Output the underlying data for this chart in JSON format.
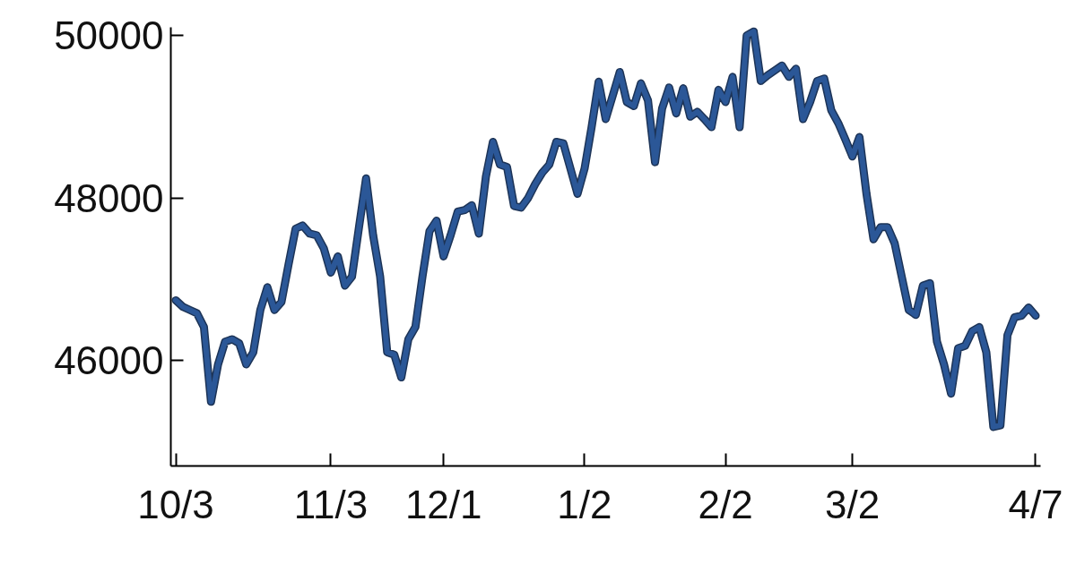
{
  "chart_data": {
    "type": "line",
    "categories": [
      "10/3",
      null,
      null,
      null,
      null,
      null,
      null,
      null,
      null,
      null,
      null,
      null,
      null,
      null,
      null,
      null,
      null,
      null,
      null,
      null,
      null,
      null,
      "11/3",
      null,
      null,
      null,
      null,
      null,
      null,
      null,
      null,
      null,
      null,
      null,
      null,
      null,
      null,
      null,
      "12/1",
      null,
      null,
      null,
      null,
      null,
      null,
      null,
      null,
      null,
      null,
      null,
      null,
      null,
      null,
      null,
      null,
      null,
      null,
      null,
      "1/2",
      null,
      null,
      null,
      null,
      null,
      null,
      null,
      null,
      null,
      null,
      null,
      null,
      null,
      null,
      null,
      null,
      null,
      null,
      null,
      "2/2",
      null,
      null,
      null,
      null,
      null,
      null,
      null,
      null,
      null,
      null,
      null,
      null,
      null,
      null,
      null,
      null,
      null,
      "3/2",
      null,
      null,
      null,
      null,
      null,
      null,
      null,
      null,
      null,
      null,
      null,
      null,
      null,
      null,
      null,
      null,
      null,
      null,
      null,
      null,
      null,
      null,
      null,
      null,
      null,
      "4/7"
    ],
    "values": [
      46740,
      46660,
      46620,
      46580,
      46410,
      45490,
      45950,
      46230,
      46260,
      46210,
      45950,
      46100,
      46620,
      46900,
      46620,
      46720,
      47180,
      47620,
      47660,
      47560,
      47540,
      47380,
      47080,
      47280,
      46920,
      47030,
      47640,
      48240,
      47540,
      47030,
      46100,
      46070,
      45790,
      46260,
      46410,
      47030,
      47590,
      47720,
      47280,
      47540,
      47830,
      47850,
      47910,
      47560,
      48260,
      48690,
      48410,
      48380,
      47900,
      47880,
      48000,
      48170,
      48310,
      48410,
      48690,
      48670,
      48360,
      48050,
      48360,
      48870,
      49430,
      48970,
      49260,
      49550,
      49180,
      49130,
      49410,
      49200,
      48440,
      49100,
      49360,
      49040,
      49350,
      49000,
      49060,
      48970,
      48870,
      49330,
      49180,
      49490,
      48870,
      50000,
      50050,
      49440,
      49510,
      49570,
      49630,
      49490,
      49590,
      48970,
      49180,
      49440,
      49470,
      49080,
      48920,
      48720,
      48510,
      48750,
      48050,
      47490,
      47640,
      47640,
      47440,
      47030,
      46620,
      46560,
      46920,
      46950,
      46230,
      45950,
      45590,
      46150,
      46180,
      46360,
      46410,
      46100,
      45180,
      45200,
      46310,
      46530,
      46550,
      46650,
      46550
    ],
    "color": "#2b5797",
    "ylim": [
      44700,
      50100
    ],
    "yticks": [
      46000,
      48000,
      50000
    ],
    "grid": false
  }
}
